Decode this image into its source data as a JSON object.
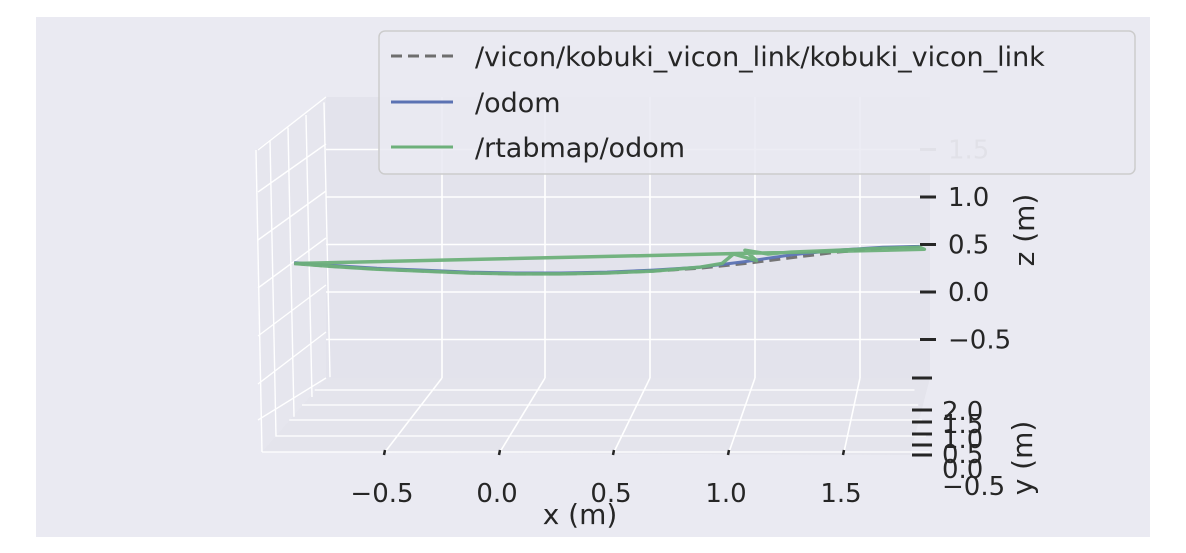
{
  "chart_data": {
    "type": "line",
    "projection": "3d",
    "xlabel": "x (m)",
    "ylabel": "y (m)",
    "zlabel": "z (m)",
    "x_ticks": [
      "−0.5",
      "0.0",
      "0.5",
      "1.0",
      "1.5"
    ],
    "y_ticks": [
      "−0.5",
      "0.0",
      "0.5",
      "1.0",
      "1.5",
      "2.0"
    ],
    "z_ticks": [
      "−0.5",
      "0.0",
      "0.5",
      "1.0",
      "1.5"
    ],
    "xlim": [
      -1.0,
      1.8
    ],
    "zlim": [
      -0.75,
      1.75
    ],
    "grid": true,
    "legend_position": "top-right",
    "series": [
      {
        "name": "/vicon/kobuki_vicon_link/kobuki_vicon_link",
        "color": "#6e6e6e",
        "style": "dashed",
        "x": [
          -0.96,
          -0.8,
          -0.6,
          -0.4,
          -0.2,
          0.0,
          0.2,
          0.4,
          0.6,
          0.8,
          1.0,
          1.2,
          1.4,
          1.6,
          1.76
        ],
        "z": [
          0.3,
          0.27,
          0.24,
          0.22,
          0.2,
          0.19,
          0.19,
          0.2,
          0.22,
          0.25,
          0.3,
          0.36,
          0.42,
          0.46,
          0.48
        ]
      },
      {
        "name": "/odom",
        "color": "#5b72b3",
        "style": "solid",
        "x": [
          -0.96,
          -0.8,
          -0.6,
          -0.4,
          -0.2,
          0.0,
          0.2,
          0.4,
          0.6,
          0.8,
          1.0,
          1.2,
          1.4,
          1.6,
          1.76
        ],
        "z": [
          0.31,
          0.28,
          0.25,
          0.23,
          0.21,
          0.2,
          0.2,
          0.21,
          0.23,
          0.26,
          0.32,
          0.39,
          0.44,
          0.47,
          0.48
        ]
      },
      {
        "name": "/rtabmap/odom",
        "color": "#6db07a",
        "style": "solid",
        "x": [
          -0.96,
          -0.8,
          -0.6,
          -0.4,
          -0.2,
          0.0,
          0.2,
          0.4,
          0.6,
          0.8,
          0.9,
          0.95,
          1.05,
          1.0,
          1.1,
          1.2,
          1.4,
          1.6,
          1.76,
          1.78,
          -0.96
        ],
        "z": [
          0.3,
          0.27,
          0.24,
          0.22,
          0.2,
          0.19,
          0.19,
          0.2,
          0.22,
          0.26,
          0.3,
          0.4,
          0.33,
          0.44,
          0.4,
          0.42,
          0.44,
          0.46,
          0.47,
          0.45,
          0.3
        ]
      }
    ]
  }
}
